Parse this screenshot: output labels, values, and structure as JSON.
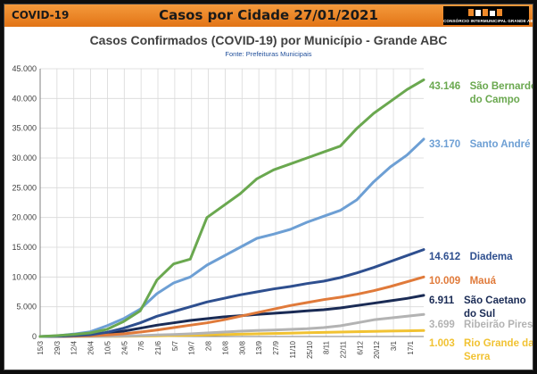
{
  "header": {
    "left_label": "COVID-19",
    "title": "Casos por Cidade 27/01/2021",
    "logo_text": "CONSÓRCIO INTERMUNICIPAL GRANDE ABC"
  },
  "chart_data": {
    "type": "line",
    "title": "Casos Confirmados (COVID-19) por Município - Grande ABC",
    "subtitle": "Fonte: Prefeituras Municipais",
    "xlabel": "",
    "ylabel": "",
    "ylim": [
      0,
      45000
    ],
    "y_ticks": [
      "0",
      "5.000",
      "10.000",
      "15.000",
      "20.000",
      "25.000",
      "30.000",
      "35.000",
      "40.000",
      "45.000"
    ],
    "x_ticks": [
      "15/3",
      "29/3",
      "12/4",
      "26/4",
      "10/5",
      "24/5",
      "7/6",
      "21/6",
      "5/7",
      "19/7",
      "2/8",
      "16/8",
      "30/8",
      "13/9",
      "27/9",
      "11/10",
      "25/10",
      "8/11",
      "22/11",
      "6/12",
      "20/12",
      "3/1",
      "17/1"
    ],
    "grid": true,
    "legend": "end-labels",
    "series": [
      {
        "name": "São Bernardo do Campo",
        "name_lines": [
          "São Bernardo",
          "do Campo"
        ],
        "value_label": "43.146",
        "color": "#6aa84f",
        "y": [
          0,
          150,
          350,
          600,
          1200,
          2500,
          4300,
          9500,
          12200,
          13000,
          20000,
          22000,
          24000,
          26500,
          28000,
          29000,
          30000,
          31000,
          32000,
          35000,
          37500,
          39500,
          41500,
          43146
        ]
      },
      {
        "name": "Santo André",
        "name_lines": [
          "Santo André"
        ],
        "value_label": "33.170",
        "color": "#6d9fd4",
        "y": [
          0,
          100,
          400,
          800,
          1800,
          3000,
          4600,
          7200,
          9000,
          10000,
          12000,
          13500,
          15000,
          16500,
          17200,
          18000,
          19200,
          20200,
          21200,
          23000,
          26000,
          28500,
          30500,
          33170
        ]
      },
      {
        "name": "Diadema",
        "name_lines": [
          "Diadema"
        ],
        "value_label": "14.612",
        "color": "#2e4f8f",
        "y": [
          0,
          50,
          150,
          300,
          700,
          1400,
          2300,
          3400,
          4200,
          5000,
          5800,
          6400,
          7000,
          7500,
          8000,
          8400,
          8900,
          9300,
          9900,
          10700,
          11600,
          12600,
          13600,
          14612
        ]
      },
      {
        "name": "Mauá",
        "name_lines": [
          "Mauá"
        ],
        "value_label": "10.009",
        "color": "#e07a3a",
        "y": [
          0,
          20,
          60,
          120,
          250,
          450,
          750,
          1100,
          1500,
          1900,
          2300,
          2800,
          3400,
          4000,
          4600,
          5200,
          5700,
          6200,
          6600,
          7100,
          7700,
          8400,
          9200,
          10009
        ]
      },
      {
        "name": "São Caetano do Sul",
        "name_lines": [
          "São Caetano",
          "do Sul"
        ],
        "value_label": "6.911",
        "color": "#1a2b55",
        "y": [
          0,
          20,
          80,
          200,
          450,
          900,
          1400,
          1900,
          2300,
          2700,
          3000,
          3300,
          3500,
          3700,
          3900,
          4100,
          4300,
          4500,
          4800,
          5200,
          5600,
          6000,
          6400,
          6911
        ]
      },
      {
        "name": "Ribeirão Pires",
        "name_lines": [
          "Ribeirão Pires"
        ],
        "value_label": "3.699",
        "color": "#b3b3b3",
        "y": [
          0,
          5,
          10,
          20,
          40,
          80,
          150,
          250,
          350,
          450,
          600,
          750,
          900,
          1000,
          1100,
          1200,
          1300,
          1500,
          1800,
          2300,
          2800,
          3100,
          3400,
          3699
        ]
      },
      {
        "name": "Rio Grande da Serra",
        "name_lines": [
          "Rio Grande da",
          "Serra"
        ],
        "value_label": "1.003",
        "color": "#f1c232",
        "y": [
          0,
          2,
          5,
          10,
          20,
          40,
          70,
          110,
          160,
          210,
          270,
          330,
          390,
          450,
          510,
          570,
          630,
          690,
          750,
          810,
          870,
          920,
          960,
          1003
        ]
      }
    ]
  }
}
